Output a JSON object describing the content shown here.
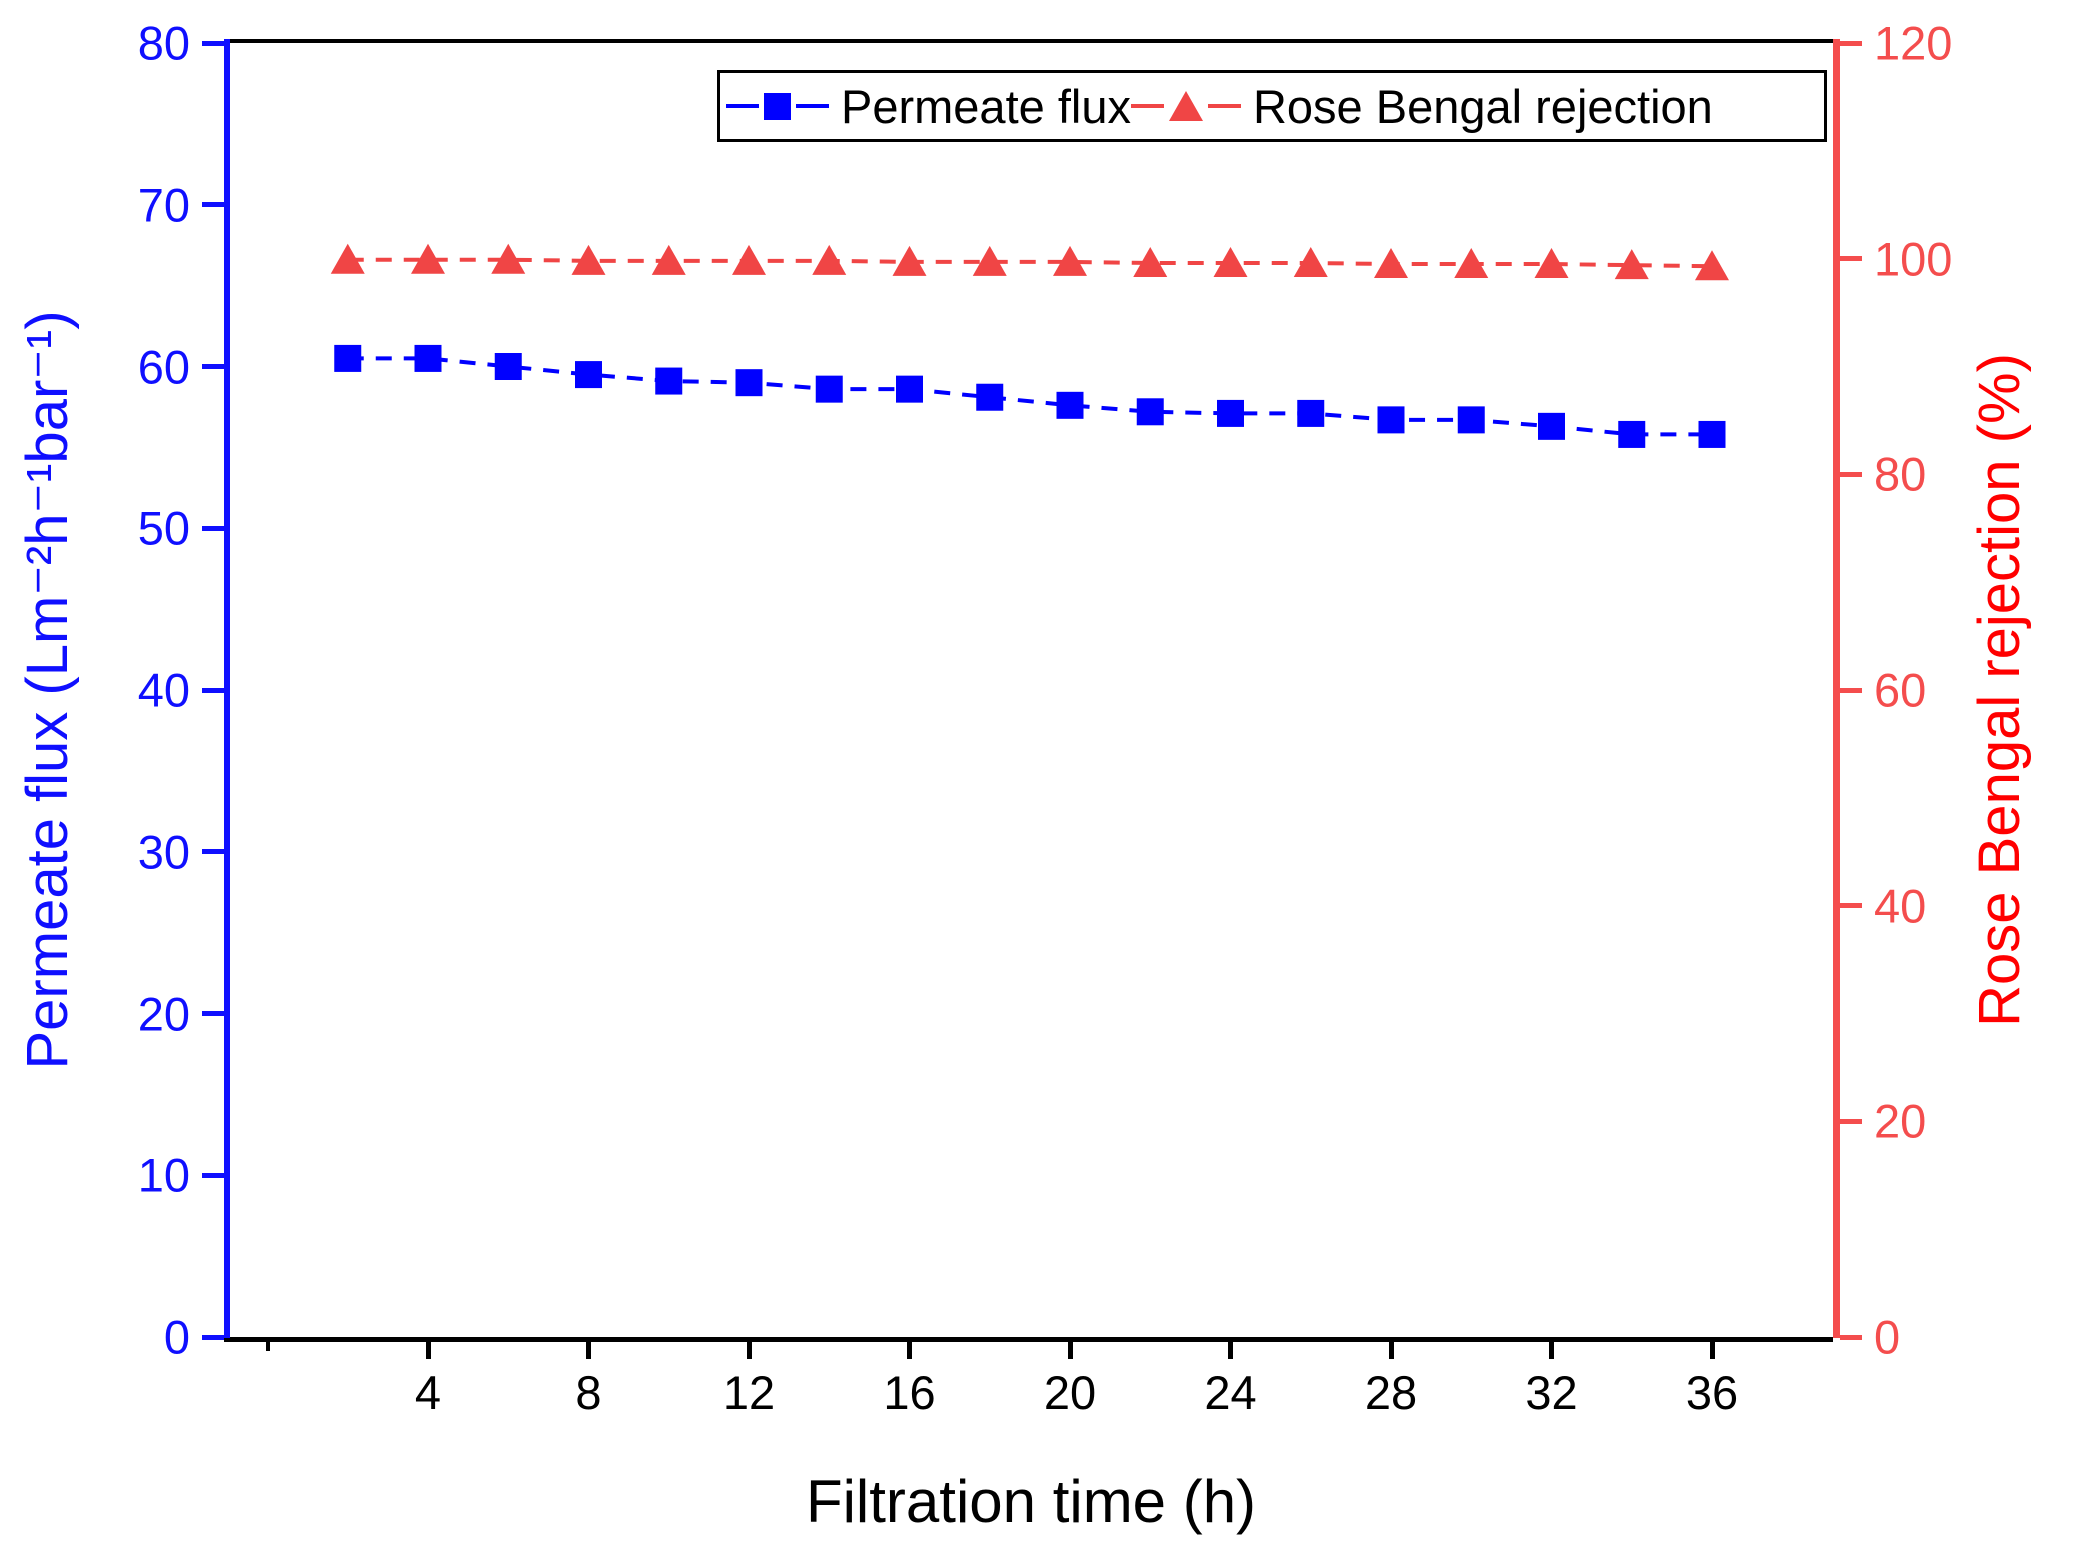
{
  "chart_data": {
    "type": "line",
    "title": "",
    "x": [
      2,
      4,
      6,
      8,
      10,
      12,
      14,
      16,
      18,
      20,
      22,
      24,
      26,
      28,
      30,
      32,
      34,
      36
    ],
    "series": [
      {
        "name": "Permeate flux",
        "axis": "left",
        "color": "#0000ff",
        "marker": "square",
        "line_style": "dashed",
        "values": [
          60.5,
          60.5,
          60.0,
          59.5,
          59.1,
          59.0,
          58.6,
          58.6,
          58.1,
          57.6,
          57.2,
          57.1,
          57.1,
          56.7,
          56.7,
          56.3,
          55.8,
          55.8
        ]
      },
      {
        "name": "Rose Bengal rejection",
        "axis": "right",
        "color": "#f04545",
        "marker": "triangle-up",
        "line_style": "dashed",
        "values": [
          99.9,
          99.9,
          99.9,
          99.8,
          99.8,
          99.8,
          99.8,
          99.7,
          99.7,
          99.7,
          99.6,
          99.6,
          99.6,
          99.5,
          99.5,
          99.5,
          99.4,
          99.3
        ]
      }
    ],
    "axes": {
      "x": {
        "label": "Filtration time (h)",
        "range": [
          -0.93,
          39.0
        ],
        "major_ticks": [
          4,
          8,
          12,
          16,
          20,
          24,
          28,
          32,
          36
        ],
        "minor_ticks": [
          0
        ],
        "tick_labels": [
          "4",
          "8",
          "12",
          "16",
          "20",
          "24",
          "28",
          "32",
          "36"
        ]
      },
      "y_left": {
        "label": "Permeate flux (Lm⁻²h⁻¹bar⁻¹)",
        "range": [
          0,
          80
        ],
        "ticks": [
          0,
          10,
          20,
          30,
          40,
          50,
          60,
          70,
          80
        ],
        "color": "#0f0fff"
      },
      "y_right": {
        "label": "Rose Bengal rejection (%)",
        "range": [
          0,
          120
        ],
        "ticks": [
          0,
          20,
          40,
          60,
          80,
          100,
          120
        ],
        "color": "#f44d4d"
      }
    },
    "legend": {
      "position": "top-center-inside",
      "items": [
        {
          "label": "Permeate flux",
          "marker": "square",
          "color": "#0000ff"
        },
        {
          "label": "Rose Bengal rejection",
          "marker": "triangle-up",
          "color": "#f04545"
        }
      ]
    },
    "grid": false
  }
}
